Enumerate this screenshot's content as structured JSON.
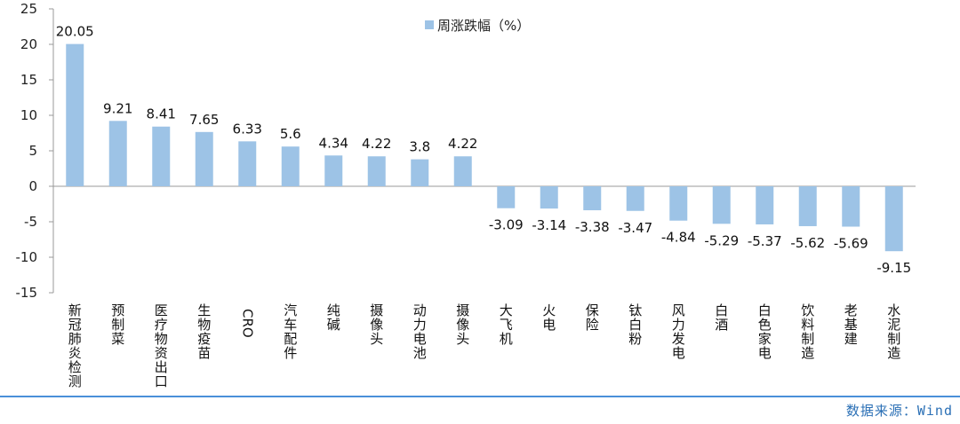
{
  "chart_data": {
    "type": "bar",
    "categories": [
      "新冠肺炎检测",
      "预制菜",
      "医疗物资出口",
      "生物疫苗",
      "CRO",
      "汽车配件",
      "纯碱",
      "摄像头",
      "动力电池",
      "摄像头",
      "大飞机",
      "火电",
      "保险",
      "钛白粉",
      "风力发电",
      "白酒",
      "白色家电",
      "饮料制造",
      "老基建",
      "水泥制造"
    ],
    "series": [
      {
        "name": "周涨跌幅（%）",
        "values": [
          20.05,
          9.21,
          8.41,
          7.65,
          6.33,
          5.6,
          4.34,
          4.22,
          3.8,
          4.22,
          -3.09,
          -3.14,
          -3.38,
          -3.47,
          -4.84,
          -5.29,
          -5.37,
          -5.62,
          -5.69,
          -9.15
        ],
        "labels": [
          "20.05",
          "9.21",
          "8.41",
          "7.65",
          "6.33",
          "5.6",
          "4.34",
          "4.22",
          "3.8",
          "4.22",
          "-3.09",
          "-3.14",
          "-3.38",
          "-3.47",
          "-4.84",
          "-5.29",
          "-5.37",
          "-5.62",
          "-5.69",
          "-9.15"
        ]
      }
    ],
    "yticks": [
      25,
      20,
      15,
      10,
      5,
      0,
      -5,
      -10,
      -15
    ],
    "ylim": [
      -15,
      25
    ],
    "grid": false,
    "legend": "top-center",
    "bar_color": "#9dc3e6"
  },
  "footer": {
    "source": "数据来源：Wind",
    "line_color": "#4a90d9"
  }
}
